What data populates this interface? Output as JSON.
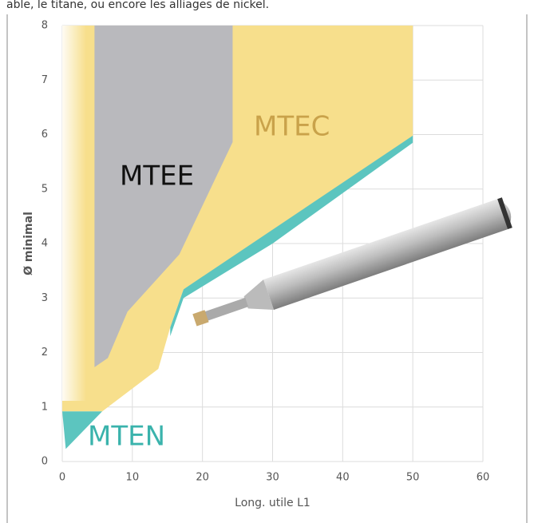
{
  "chart_data": {
    "type": "area",
    "caption": "able, le titane, ou encore les alliages de nickel.",
    "xlabel": "Long. utile L1",
    "ylabel": "Ø minimal",
    "xlim": [
      0,
      60
    ],
    "ylim": [
      0,
      8
    ],
    "xticks": [
      0,
      10,
      20,
      30,
      40,
      50,
      60
    ],
    "yticks": [
      0,
      1,
      2,
      3,
      4,
      5,
      6,
      7,
      8
    ],
    "grid": true,
    "series": [
      {
        "name": "MTEC",
        "color": "#f7df8c",
        "x": [
          0,
          5.7,
          13.7,
          15.4,
          17.3,
          25,
          30,
          50,
          50,
          0
        ],
        "y": [
          0.92,
          0.92,
          1.7,
          2.46,
          3.16,
          3.7,
          4.0,
          5.98,
          8,
          8
        ]
      },
      {
        "name": "MTEE",
        "color": "#b9b9bd",
        "x": [
          4.6,
          6.5,
          9.3,
          16.7,
          24.3,
          24.3,
          4.6
        ],
        "y": [
          1.73,
          1.9,
          2.75,
          3.8,
          5.86,
          8,
          8
        ]
      },
      {
        "name": "MTEN",
        "color": "#5cc5bf",
        "x": [
          0,
          5.7,
          0.5,
          null,
          15.4,
          17.3,
          50,
          50,
          30,
          17.3,
          15.4
        ],
        "y": [
          0.92,
          0.92,
          0.23,
          null,
          2.46,
          3.16,
          5.98,
          5.85,
          4.0,
          3.0,
          2.3
        ]
      }
    ]
  }
}
